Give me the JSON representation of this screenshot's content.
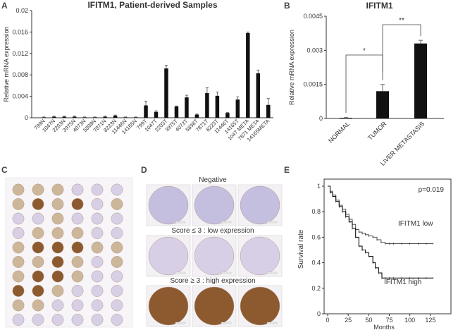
{
  "panels": {
    "A": "A",
    "B": "B",
    "C": "C",
    "D": "D",
    "E": "E"
  },
  "chart_data": [
    {
      "panel": "A",
      "type": "bar",
      "title": "IFITM1, Patient-derived Samples",
      "ylabel": "Relative mRNA expression",
      "xlabel": "",
      "ylim": [
        0,
        0.02
      ],
      "yticks": [
        "0",
        "0.004",
        "0.008",
        "0.012",
        "0.016",
        "0.02"
      ],
      "categories": [
        "799N",
        "1047N",
        "2203N",
        "3975N",
        "4073N",
        "5898N",
        "7871N",
        "8223N",
        "11446N",
        "14165N",
        "799T",
        "1047T",
        "2203T",
        "3975T",
        "4073T",
        "5898T",
        "7871T",
        "8223T",
        "11446T",
        "14165T",
        "1047 META",
        "7871 META",
        "14165META"
      ],
      "values": [
        0.0001,
        0.0002,
        0.0002,
        0.0002,
        0.0001,
        0.0001,
        0.0002,
        0.0004,
        0.0001,
        0.0001,
        0.0023,
        0.0011,
        0.0092,
        0.0021,
        0.0038,
        0.0006,
        0.0046,
        0.0041,
        0.0009,
        0.0034,
        0.0158,
        0.0083,
        0.0024
      ],
      "errors": [
        5e-05,
        0.0001,
        0.0001,
        0.0001,
        5e-05,
        5e-05,
        0.0001,
        0.0001,
        5e-05,
        5e-05,
        0.0008,
        0.0002,
        0.0006,
        0.0001,
        0.0004,
        0.0001,
        0.001,
        0.0007,
        0.0001,
        0.0005,
        0.0002,
        0.0006,
        0.0012
      ]
    },
    {
      "panel": "B",
      "type": "bar",
      "title": "IFITM1",
      "ylabel": "Relative mRNA expression",
      "xlabel": "",
      "ylim": [
        0,
        0.0045
      ],
      "yticks": [
        "0",
        "0.0015",
        "0.003",
        "0.0045"
      ],
      "categories": [
        "NORMAL",
        "TUMOR",
        "LIVER METASTASIS"
      ],
      "values": [
        3e-05,
        0.0012,
        0.0033
      ],
      "errors": [
        1e-05,
        0.0003,
        0.00014
      ],
      "significance": [
        "*",
        "**"
      ]
    },
    {
      "panel": "E",
      "type": "line",
      "title": "",
      "xlabel": "Months",
      "ylabel": "Survival rate",
      "xlim": [
        0,
        150
      ],
      "ylim": [
        0,
        1
      ],
      "xticks": [
        "0",
        "25",
        "50",
        "75",
        "100",
        "125"
      ],
      "yticks": [
        "0",
        "0.2",
        "0.4",
        "0.6",
        "0.8",
        "1"
      ],
      "annotation": "p=0.019",
      "series": [
        {
          "name": "IFITM1 low",
          "x": [
            0,
            3,
            6,
            10,
            14,
            18,
            22,
            26,
            30,
            34,
            38,
            42,
            46,
            50,
            55,
            60,
            65,
            70,
            75,
            80,
            90,
            100,
            110,
            120,
            128
          ],
          "y": [
            1.0,
            0.96,
            0.93,
            0.89,
            0.85,
            0.82,
            0.78,
            0.74,
            0.7,
            0.66,
            0.64,
            0.63,
            0.62,
            0.61,
            0.6,
            0.58,
            0.56,
            0.55,
            0.55,
            0.55,
            0.55,
            0.55,
            0.55,
            0.55,
            0.55
          ]
        },
        {
          "name": "IFITM1 high",
          "x": [
            0,
            3,
            6,
            10,
            14,
            18,
            22,
            26,
            30,
            34,
            38,
            42,
            46,
            50,
            55,
            58,
            62,
            66,
            70,
            75,
            80,
            90,
            100,
            110,
            120,
            128
          ],
          "y": [
            1.0,
            0.95,
            0.92,
            0.88,
            0.84,
            0.8,
            0.76,
            0.72,
            0.67,
            0.6,
            0.53,
            0.5,
            0.48,
            0.45,
            0.4,
            0.36,
            0.32,
            0.28,
            0.28,
            0.28,
            0.28,
            0.28,
            0.28,
            0.28,
            0.28,
            0.28
          ]
        }
      ]
    }
  ],
  "panelD": {
    "rows": [
      "Negative",
      "Score ≤ 3 : low expression",
      "Score ≥ 3 : high expression"
    ]
  }
}
